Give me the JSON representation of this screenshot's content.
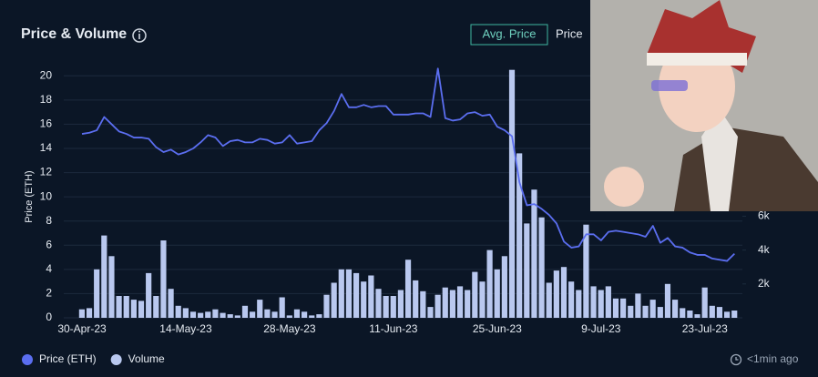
{
  "title": "Price & Volume",
  "toggles": [
    "Avg. Price",
    "Price"
  ],
  "updated": "<1min ago",
  "chart_data": {
    "type": "bar-line",
    "ylabel": "Price (ETH)",
    "categories": [
      "30-Apr-23",
      null,
      null,
      null,
      null,
      null,
      null,
      null,
      null,
      null,
      null,
      null,
      null,
      null,
      "14-May-23",
      null,
      null,
      null,
      null,
      null,
      null,
      null,
      null,
      null,
      null,
      null,
      null,
      null,
      "28-May-23",
      null,
      null,
      null,
      null,
      null,
      null,
      null,
      null,
      null,
      null,
      null,
      null,
      null,
      "11-Jun-23",
      null,
      null,
      null,
      null,
      null,
      null,
      null,
      null,
      null,
      null,
      null,
      null,
      null,
      "25-Jun-23",
      null,
      null,
      null,
      null,
      null,
      null,
      null,
      null,
      null,
      null,
      null,
      null,
      null,
      "9-Jul-23",
      null,
      null,
      null,
      null,
      null,
      null,
      null,
      null,
      null,
      null,
      null,
      null,
      null,
      "23-Jul-23",
      null,
      null,
      null,
      null
    ],
    "series": [
      {
        "name": "Price (ETH)",
        "color": "#5b6ef0",
        "kind": "line",
        "values": [
          15.2,
          15.3,
          15.5,
          16.6,
          16.0,
          15.4,
          15.2,
          14.9,
          14.9,
          14.8,
          14.1,
          13.7,
          13.9,
          13.5,
          13.7,
          14.0,
          14.5,
          15.1,
          14.9,
          14.2,
          14.6,
          14.7,
          14.5,
          14.5,
          14.8,
          14.7,
          14.4,
          14.5,
          15.1,
          14.4,
          14.5,
          14.6,
          15.5,
          16.1,
          17.1,
          18.5,
          17.4,
          17.4,
          17.6,
          17.4,
          17.5,
          17.5,
          16.8,
          16.8,
          16.8,
          16.9,
          16.9,
          16.6,
          20.6,
          16.5,
          16.3,
          16.4,
          16.9,
          17.0,
          16.7,
          16.8,
          15.8,
          15.5,
          15.0,
          11.2,
          9.3,
          9.4,
          9.0,
          8.5,
          7.8,
          6.3,
          5.8,
          5.9,
          6.9,
          6.9,
          6.4,
          7.1,
          7.2,
          7.1,
          7.0,
          6.9,
          6.7,
          7.6,
          6.2,
          6.6,
          5.9,
          5.8,
          5.4,
          5.2,
          5.2,
          4.9,
          4.8,
          4.7,
          5.3
        ]
      },
      {
        "name": "Volume",
        "color": "#b9c8ef",
        "kind": "bar",
        "axis": "y2",
        "values": [
          500,
          570,
          2860,
          4860,
          3640,
          1290,
          1290,
          1070,
          1000,
          2640,
          1290,
          4570,
          1710,
          710,
          570,
          360,
          290,
          360,
          500,
          290,
          210,
          140,
          710,
          360,
          1070,
          500,
          360,
          1210,
          140,
          500,
          360,
          140,
          210,
          1360,
          2070,
          2860,
          2860,
          2640,
          2140,
          2500,
          1710,
          1290,
          1290,
          1640,
          3430,
          2210,
          1570,
          640,
          1360,
          1790,
          1640,
          1860,
          1640,
          2710,
          2140,
          4000,
          2860,
          3640,
          14640,
          9710,
          5570,
          7570,
          5930,
          2070,
          2790,
          3000,
          2140,
          1640,
          5500,
          1860,
          1640,
          1860,
          1140,
          1140,
          710,
          1430,
          710,
          1070,
          640,
          2000,
          1070,
          570,
          430,
          210,
          1790,
          710,
          640,
          360,
          430
        ]
      }
    ],
    "ylim": [
      0,
      21
    ],
    "yticks": [
      0,
      2,
      4,
      6,
      8,
      10,
      12,
      14,
      16,
      18,
      20
    ],
    "y2lim": [
      0,
      15000
    ],
    "y2ticks": [
      {
        "value": 2000,
        "label": "2k"
      },
      {
        "value": 4000,
        "label": "4k"
      },
      {
        "value": 6000,
        "label": "6k"
      }
    ],
    "grid": true
  }
}
